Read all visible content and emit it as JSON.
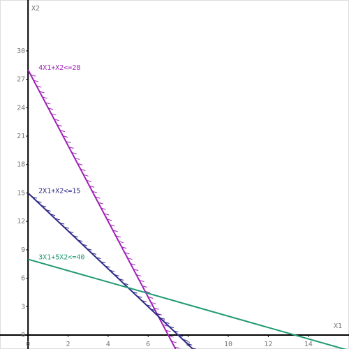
{
  "chart_data": {
    "type": "line",
    "x_label": "X1",
    "y_label": "X2",
    "xlim": [
      -1.4,
      16.03
    ],
    "ylim": [
      -1.47,
      35.37
    ],
    "xticks": [
      0,
      2,
      4,
      6,
      8,
      10,
      12,
      14
    ],
    "yticks": [
      0,
      3,
      6,
      9,
      12,
      15,
      18,
      21,
      24,
      27,
      30
    ],
    "series": [
      {
        "name": "4X1+X2<=28",
        "color": "#a020b8",
        "x": [
          0,
          7.37
        ],
        "values": [
          28,
          -1.47
        ]
      },
      {
        "name": "2X1+X2<=15",
        "color": "#2e2a88",
        "x": [
          0,
          8.23
        ],
        "values": [
          15,
          -1.47
        ]
      },
      {
        "name": "3X1+5X2<=40",
        "color": "#1f9a72",
        "x": [
          0,
          16.03
        ],
        "values": [
          8,
          -1.62
        ]
      }
    ]
  }
}
